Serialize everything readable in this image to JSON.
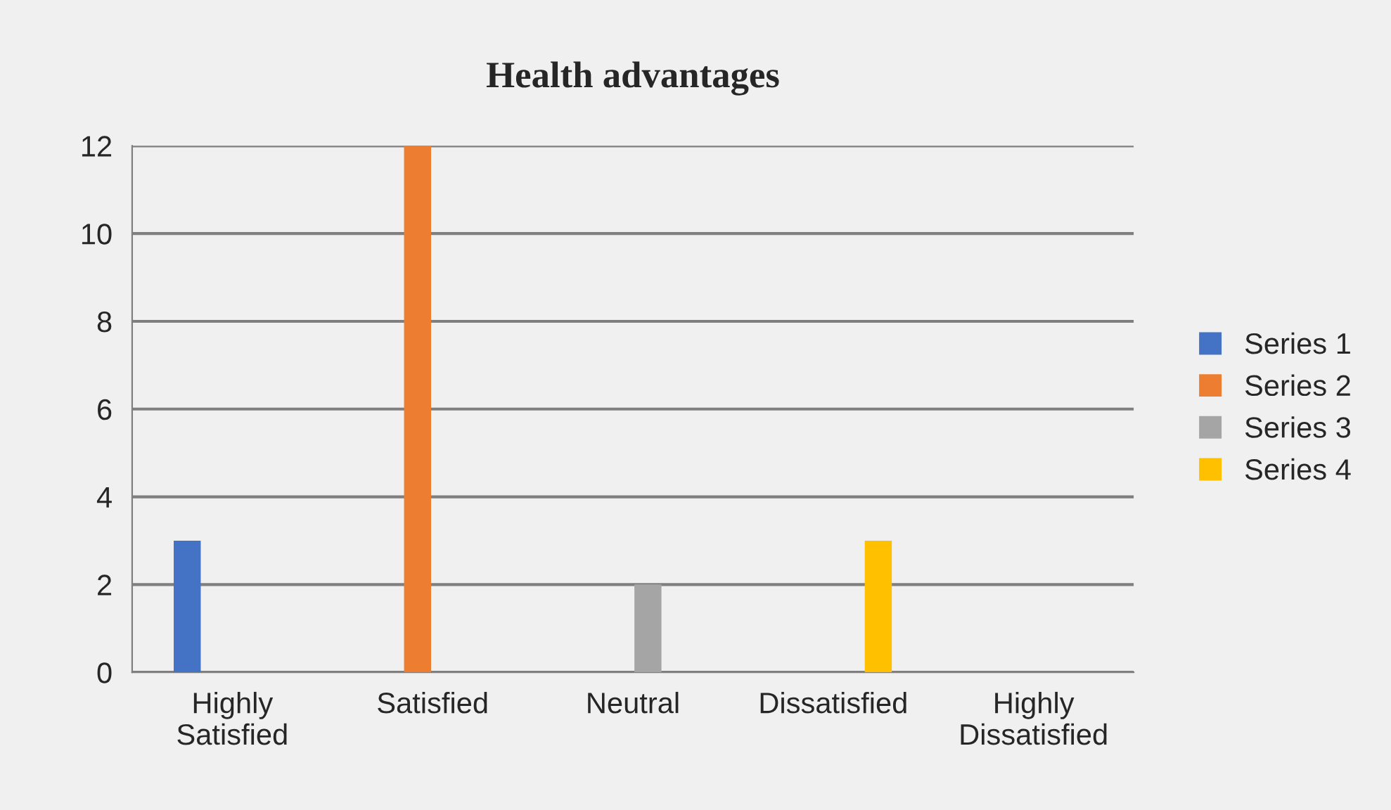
{
  "chart_data": {
    "type": "bar",
    "title": "Health advantages",
    "categories": [
      "Highly\nSatisfied",
      "Satisfied",
      "Neutral",
      "Dissatisfied",
      "Highly\nDissatisfied"
    ],
    "series": [
      {
        "name": "Series 1",
        "color": "#4472c4",
        "values": [
          3,
          null,
          null,
          null,
          null
        ]
      },
      {
        "name": "Series 2",
        "color": "#ed7d31",
        "values": [
          null,
          12,
          null,
          null,
          null
        ]
      },
      {
        "name": "Series 3",
        "color": "#a5a5a5",
        "values": [
          null,
          null,
          2,
          null,
          null
        ]
      },
      {
        "name": "Series 4",
        "color": "#ffc000",
        "values": [
          null,
          null,
          null,
          3,
          null
        ]
      }
    ],
    "ylim": [
      0,
      12
    ],
    "yticks": [
      0,
      2,
      4,
      6,
      8,
      10,
      12
    ],
    "grid": "y",
    "legend": "right"
  }
}
